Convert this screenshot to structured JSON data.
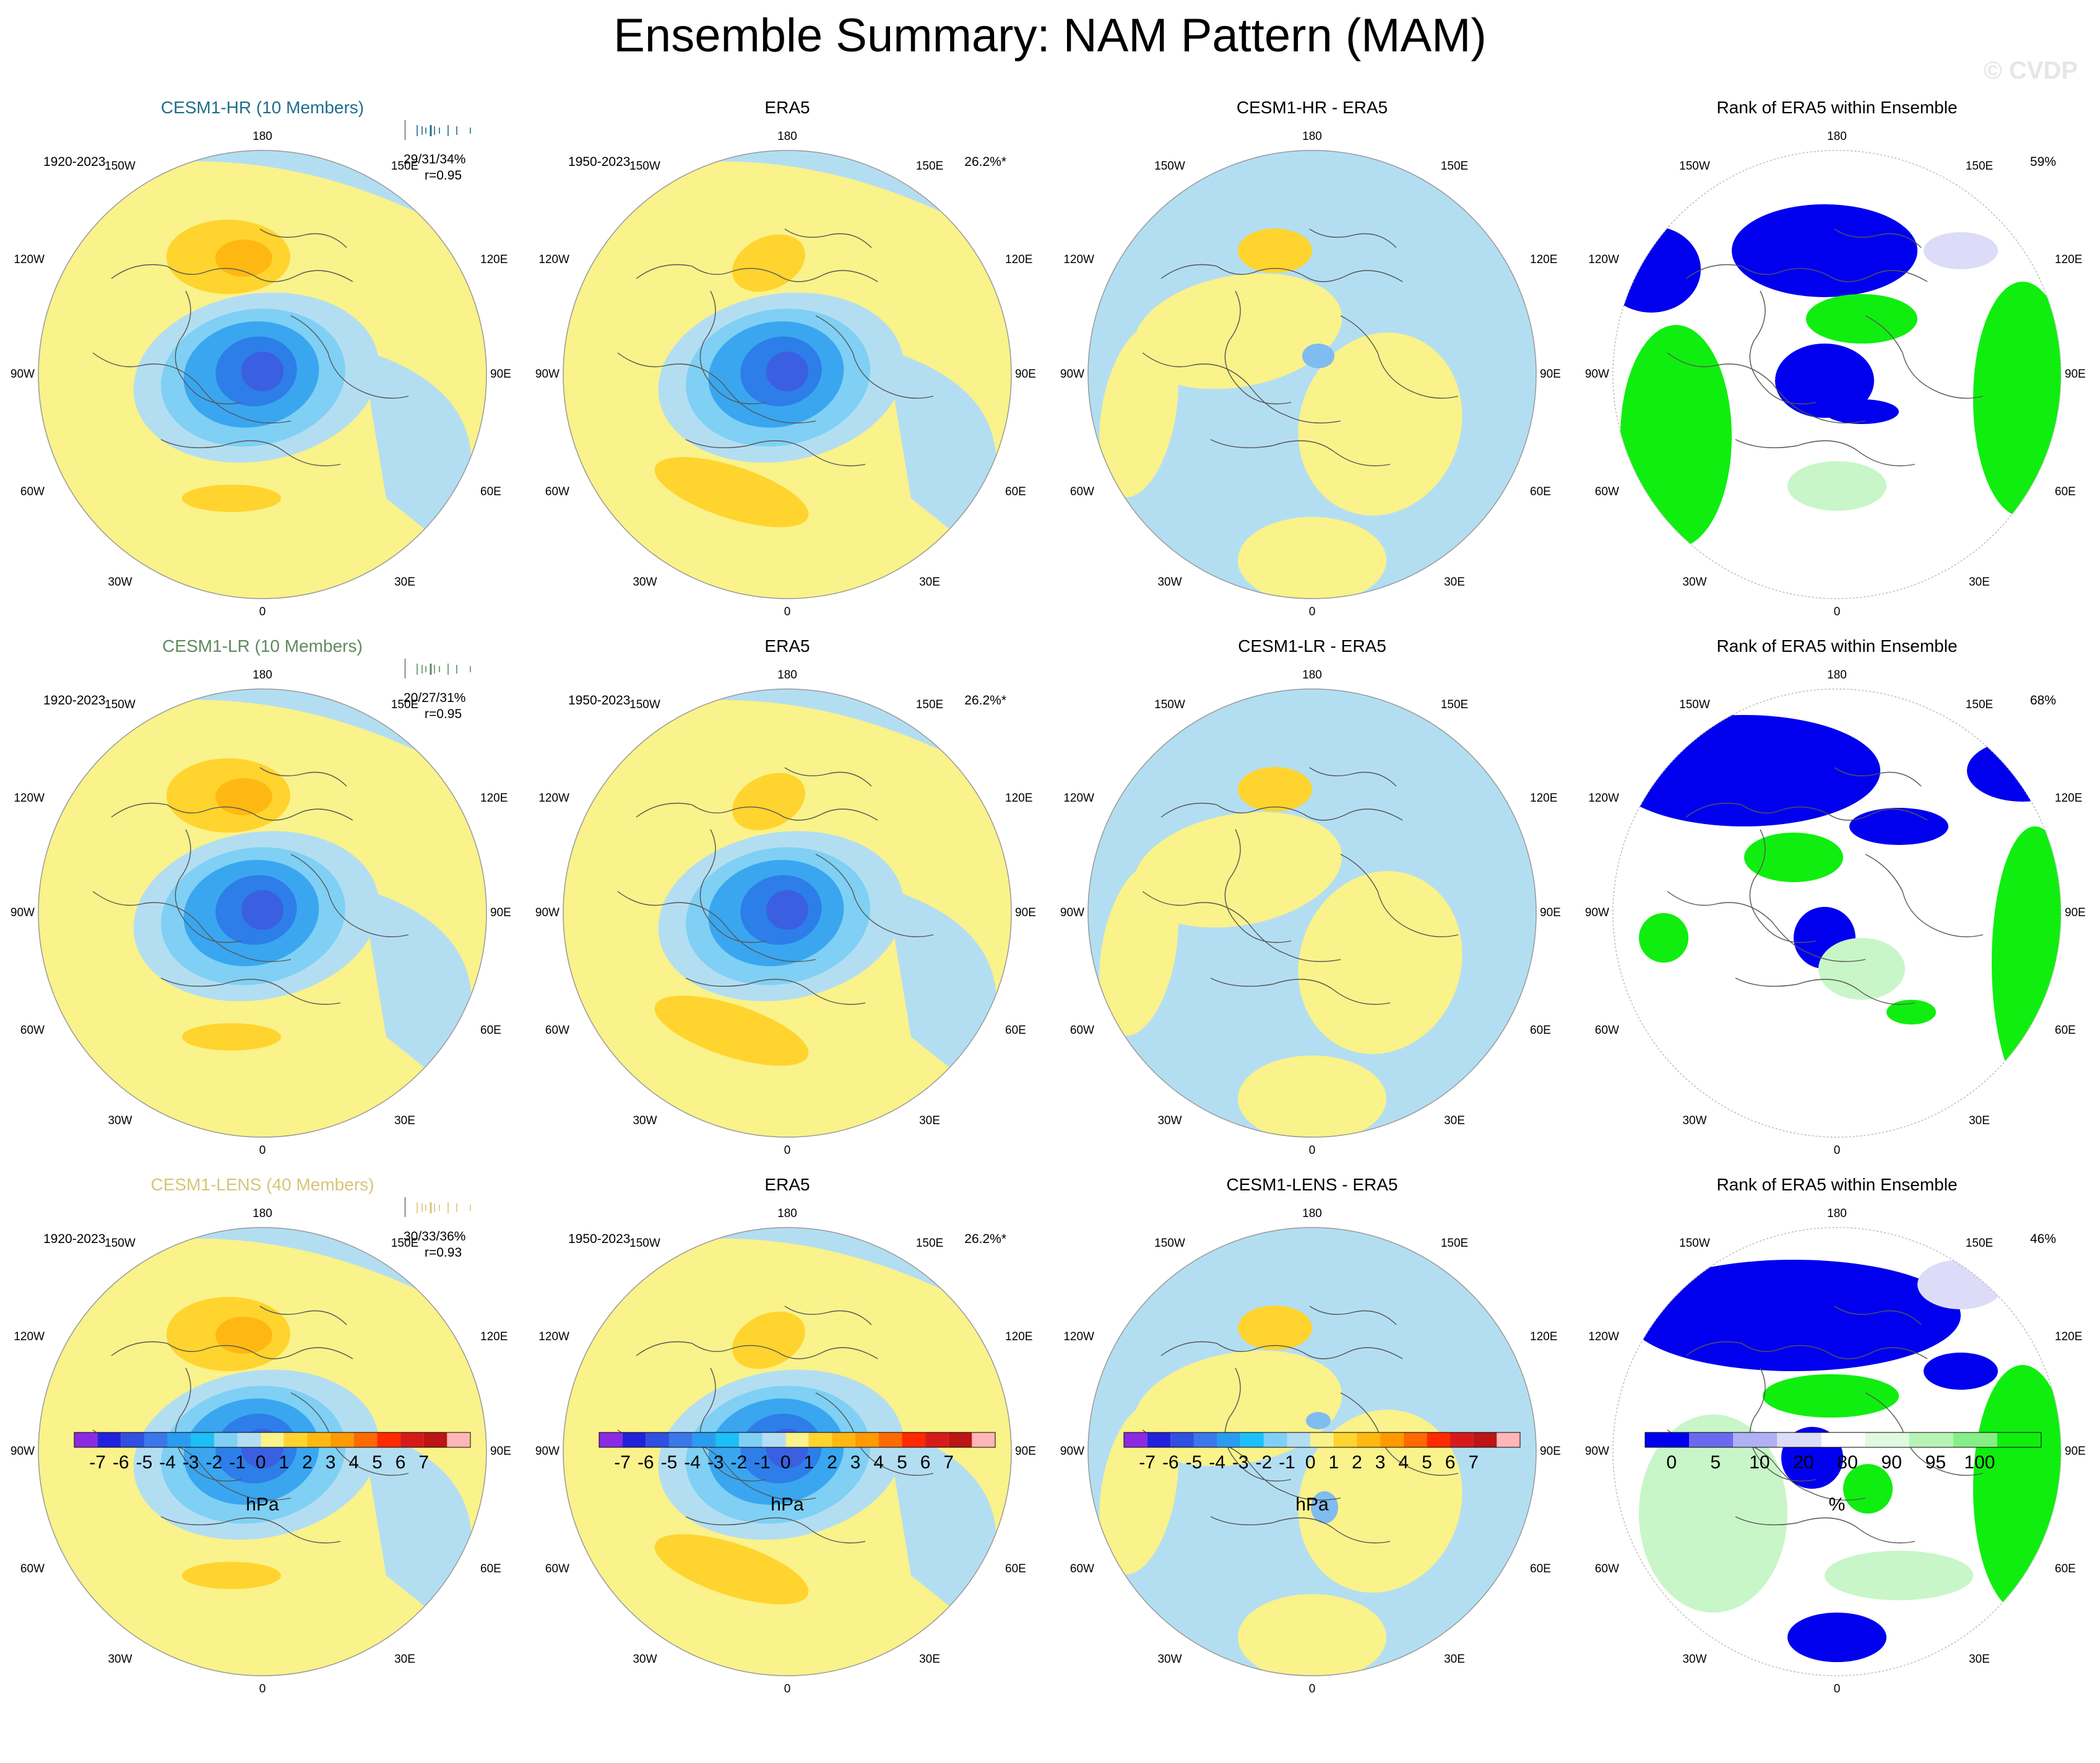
{
  "title": "Ensemble Summary: NAM Pattern (MAM)",
  "watermark": "© CVDP",
  "map_labels": {
    "top": "180",
    "bottom": "0",
    "upper_left": "150W",
    "upper_right": "150E",
    "mid_upper_left": "120W",
    "mid_upper_right": "120E",
    "left": "90W",
    "right": "90E",
    "mid_lower_left": "60W",
    "mid_lower_right": "60E",
    "lower_left": "30W",
    "lower_right": "30E"
  },
  "rows": [
    {
      "model": {
        "title": "CESM1-HR (10 Members)",
        "title_color": "#1f6e8c",
        "period": "1920-2023",
        "stat_pct": "29/31/34%",
        "stat_r": "r=0.95"
      },
      "era5": {
        "title": "ERA5",
        "period": "1950-2023",
        "pct": "26.2%*"
      },
      "diff": {
        "title": "CESM1-HR - ERA5"
      },
      "rank": {
        "title": "Rank of ERA5 within Ensemble",
        "pct": "59%"
      }
    },
    {
      "model": {
        "title": "CESM1-LR (10 Members)",
        "title_color": "#5f8a5f",
        "period": "1920-2023",
        "stat_pct": "20/27/31%",
        "stat_r": "r=0.95"
      },
      "era5": {
        "title": "ERA5",
        "period": "1950-2023",
        "pct": "26.2%*"
      },
      "diff": {
        "title": "CESM1-LR - ERA5"
      },
      "rank": {
        "title": "Rank of ERA5 within Ensemble",
        "pct": "68%"
      }
    },
    {
      "model": {
        "title": "CESM1-LENS (40 Members)",
        "title_color": "#d8c47a",
        "period": "1920-2023",
        "stat_pct": "30/33/36%",
        "stat_r": "r=0.93"
      },
      "era5": {
        "title": "ERA5",
        "period": "1950-2023",
        "pct": "26.2%*"
      },
      "diff": {
        "title": "CESM1-LENS - ERA5"
      },
      "rank": {
        "title": "Rank of ERA5 within Ensemble",
        "pct": "46%"
      }
    }
  ],
  "hpa_colorbar": {
    "unit": "hPa",
    "tick_labels": [
      "-7",
      "-6",
      "-5",
      "-4",
      "-3",
      "-2",
      "-1",
      "0",
      "1",
      "2",
      "3",
      "4",
      "5",
      "6",
      "7"
    ],
    "colors": [
      "#8a2be2",
      "#2222dd",
      "#2f50e0",
      "#3a78ec",
      "#2a9cf0",
      "#1cc0f8",
      "#7fd0f4",
      "#b3def2",
      "#faf28a",
      "#ffd42e",
      "#ffb812",
      "#ff9a00",
      "#ff6a00",
      "#ff2a00",
      "#d61a1a",
      "#bb1515",
      "#ffb6b6"
    ]
  },
  "rank_colorbar": {
    "unit": "%",
    "tick_labels": [
      "0",
      "5",
      "10",
      "20",
      "80",
      "90",
      "95",
      "100"
    ],
    "colors": [
      "#0000ee",
      "#6a6aee",
      "#b0b0f4",
      "#dcdcf8",
      "#ffffff",
      "#e0fae0",
      "#b6f4b6",
      "#86ee86",
      "#10ee10"
    ]
  },
  "palette": {
    "yellow": "#faf28a",
    "light_blue": "#b3def2",
    "orange_light": "#ffd42e",
    "orange_dark": "#ffb812",
    "blue1": "#7fd0f4",
    "blue2": "#3aa6f0",
    "blue3": "#2d7ee8",
    "blue4": "#3a5fe0",
    "rank_blue": "#0000ee",
    "rank_lightblue": "#dcdcf8",
    "rank_green": "#10ee10",
    "rank_lightgreen": "#c8f6c8"
  }
}
